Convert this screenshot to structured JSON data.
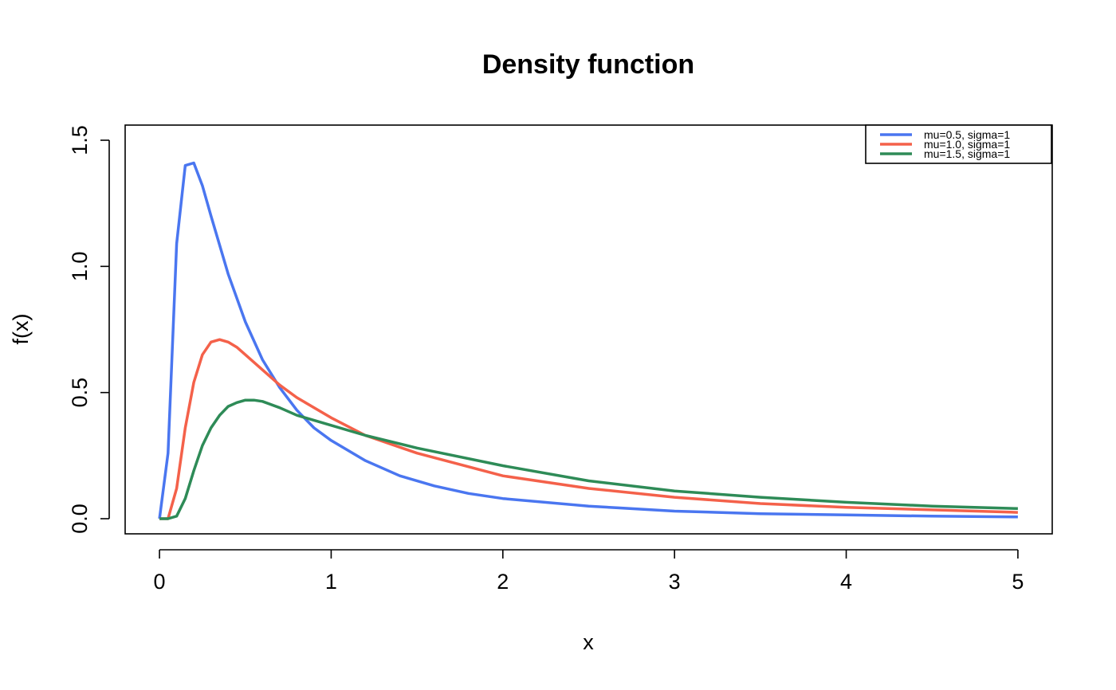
{
  "chart_data": {
    "type": "line",
    "title": "Density function",
    "xlabel": "x",
    "ylabel": "f(x)",
    "xlim": [
      -0.2,
      5.2
    ],
    "ylim": [
      -0.06,
      1.56
    ],
    "x_ticks": [
      0,
      1,
      2,
      3,
      4,
      5
    ],
    "x_tick_labels": [
      "0",
      "1",
      "2",
      "3",
      "4",
      "5"
    ],
    "y_ticks": [
      0.0,
      0.5,
      1.0,
      1.5
    ],
    "y_tick_labels": [
      "0.0",
      "0.5",
      "1.0",
      "1.5"
    ],
    "grid": false,
    "legend_position": "top-right",
    "series": [
      {
        "name": "mu=0.5, sigma=1",
        "color": "#4A76F0",
        "x": [
          0,
          0.05,
          0.1,
          0.15,
          0.2,
          0.25,
          0.3,
          0.4,
          0.5,
          0.6,
          0.7,
          0.8,
          0.9,
          1.0,
          1.2,
          1.4,
          1.6,
          1.8,
          2.0,
          2.5,
          3.0,
          3.5,
          4.0,
          4.5,
          5.0
        ],
        "y": [
          0,
          0.26,
          1.09,
          1.4,
          1.41,
          1.32,
          1.2,
          0.97,
          0.78,
          0.63,
          0.52,
          0.43,
          0.36,
          0.31,
          0.23,
          0.17,
          0.13,
          0.1,
          0.08,
          0.05,
          0.03,
          0.02,
          0.015,
          0.01,
          0.007
        ]
      },
      {
        "name": "mu=1.0, sigma=1",
        "color": "#F4614A",
        "x": [
          0,
          0.05,
          0.1,
          0.15,
          0.2,
          0.25,
          0.3,
          0.35,
          0.4,
          0.45,
          0.5,
          0.6,
          0.7,
          0.8,
          1.0,
          1.2,
          1.5,
          2.0,
          2.5,
          3.0,
          3.5,
          4.0,
          4.5,
          5.0
        ],
        "y": [
          0,
          0.0,
          0.12,
          0.36,
          0.54,
          0.65,
          0.7,
          0.71,
          0.7,
          0.68,
          0.65,
          0.59,
          0.53,
          0.48,
          0.4,
          0.33,
          0.26,
          0.17,
          0.12,
          0.085,
          0.06,
          0.045,
          0.035,
          0.025
        ]
      },
      {
        "name": "mu=1.5, sigma=1",
        "color": "#2E8B57",
        "x": [
          0,
          0.05,
          0.1,
          0.15,
          0.2,
          0.25,
          0.3,
          0.35,
          0.4,
          0.45,
          0.5,
          0.55,
          0.6,
          0.7,
          0.8,
          1.0,
          1.2,
          1.5,
          2.0,
          2.5,
          3.0,
          3.5,
          4.0,
          4.5,
          5.0
        ],
        "y": [
          0,
          0.0,
          0.01,
          0.08,
          0.19,
          0.29,
          0.36,
          0.41,
          0.445,
          0.46,
          0.47,
          0.47,
          0.465,
          0.44,
          0.41,
          0.37,
          0.33,
          0.28,
          0.21,
          0.15,
          0.11,
          0.085,
          0.065,
          0.05,
          0.04
        ]
      }
    ]
  }
}
